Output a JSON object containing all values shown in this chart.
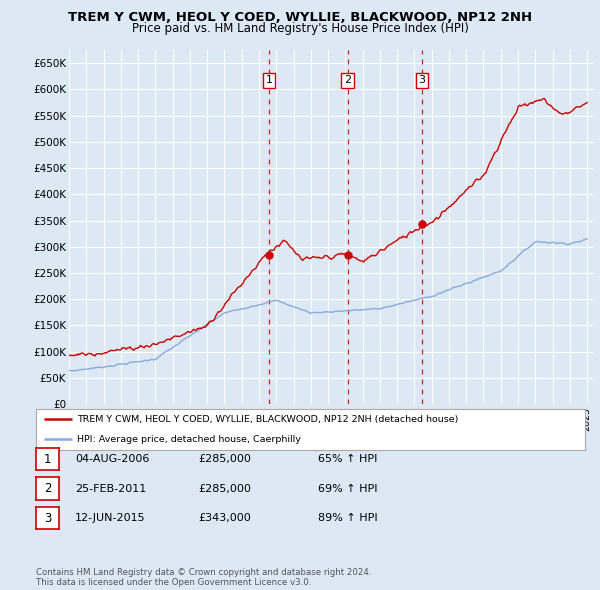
{
  "title": "TREM Y CWM, HEOL Y COED, WYLLIE, BLACKWOOD, NP12 2NH",
  "subtitle": "Price paid vs. HM Land Registry's House Price Index (HPI)",
  "background_color": "#dde8f5",
  "plot_bg_color": "#dde8f5",
  "y_ticks": [
    0,
    50000,
    100000,
    150000,
    200000,
    250000,
    300000,
    350000,
    400000,
    450000,
    500000,
    550000,
    600000,
    650000
  ],
  "y_labels": [
    "£0",
    "£50K",
    "£100K",
    "£150K",
    "£200K",
    "£250K",
    "£300K",
    "£350K",
    "£400K",
    "£450K",
    "£500K",
    "£550K",
    "£600K",
    "£650K"
  ],
  "sale_year_nums": [
    2006.583,
    2011.146,
    2015.45
  ],
  "sale_prices": [
    285000,
    285000,
    343000
  ],
  "sale_labels": [
    "1",
    "2",
    "3"
  ],
  "legend_property": "TREM Y CWM, HEOL Y COED, WYLLIE, BLACKWOOD, NP12 2NH (detached house)",
  "legend_hpi": "HPI: Average price, detached house, Caerphilly",
  "table_rows": [
    {
      "num": "1",
      "date": "04-AUG-2006",
      "price": "£285,000",
      "hpi": "65% ↑ HPI"
    },
    {
      "num": "2",
      "date": "25-FEB-2011",
      "price": "£285,000",
      "hpi": "69% ↑ HPI"
    },
    {
      "num": "3",
      "date": "12-JUN-2015",
      "price": "£343,000",
      "hpi": "89% ↑ HPI"
    }
  ],
  "footer": "Contains HM Land Registry data © Crown copyright and database right 2024.\nThis data is licensed under the Open Government Licence v3.0.",
  "red_color": "#cc0000",
  "blue_color": "#88aadd",
  "grid_color": "white",
  "legend_border_color": "#aaaaaa"
}
